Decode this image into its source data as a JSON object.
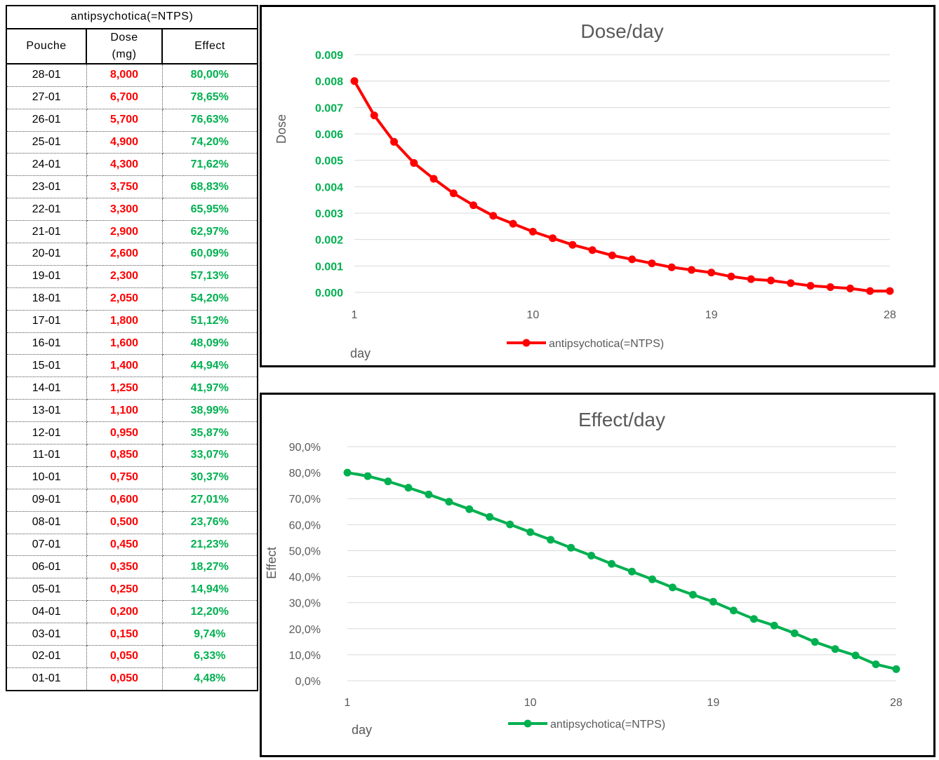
{
  "table": {
    "title": "antipsychotica(=NTPS)",
    "columns": [
      "Pouche",
      "Dose\n(mg)",
      "Effect"
    ],
    "rows": [
      [
        "28-01",
        "8,000",
        "80,00%"
      ],
      [
        "27-01",
        "6,700",
        "78,65%"
      ],
      [
        "26-01",
        "5,700",
        "76,63%"
      ],
      [
        "25-01",
        "4,900",
        "74,20%"
      ],
      [
        "24-01",
        "4,300",
        "71,62%"
      ],
      [
        "23-01",
        "3,750",
        "68,83%"
      ],
      [
        "22-01",
        "3,300",
        "65,95%"
      ],
      [
        "21-01",
        "2,900",
        "62,97%"
      ],
      [
        "20-01",
        "2,600",
        "60,09%"
      ],
      [
        "19-01",
        "2,300",
        "57,13%"
      ],
      [
        "18-01",
        "2,050",
        "54,20%"
      ],
      [
        "17-01",
        "1,800",
        "51,12%"
      ],
      [
        "16-01",
        "1,600",
        "48,09%"
      ],
      [
        "15-01",
        "1,400",
        "44,94%"
      ],
      [
        "14-01",
        "1,250",
        "41,97%"
      ],
      [
        "13-01",
        "1,100",
        "38,99%"
      ],
      [
        "12-01",
        "0,950",
        "35,87%"
      ],
      [
        "11-01",
        "0,850",
        "33,07%"
      ],
      [
        "10-01",
        "0,750",
        "30,37%"
      ],
      [
        "09-01",
        "0,600",
        "27,01%"
      ],
      [
        "08-01",
        "0,500",
        "23,76%"
      ],
      [
        "07-01",
        "0,450",
        "21,23%"
      ],
      [
        "06-01",
        "0,350",
        "18,27%"
      ],
      [
        "05-01",
        "0,250",
        "14,94%"
      ],
      [
        "04-01",
        "0,200",
        "12,20%"
      ],
      [
        "03-01",
        "0,150",
        "9,74%"
      ],
      [
        "02-01",
        "0,050",
        "6,33%"
      ],
      [
        "01-01",
        "0,050",
        "4,48%"
      ]
    ]
  },
  "colors": {
    "dose": "#ff0000",
    "effect": "#00b050",
    "grid": "#d9d9d9",
    "text": "#595959"
  },
  "chart_data": [
    {
      "type": "line",
      "title": "Dose/day",
      "xlabel": "day",
      "ylabel": "Dose",
      "x": [
        1,
        2,
        3,
        4,
        5,
        6,
        7,
        8,
        9,
        10,
        11,
        12,
        13,
        14,
        15,
        16,
        17,
        18,
        19,
        20,
        21,
        22,
        23,
        24,
        25,
        26,
        27,
        28
      ],
      "xticks": [
        "1",
        "10",
        "19",
        "28"
      ],
      "yticks": [
        "0.000",
        "0.001",
        "0.002",
        "0.003",
        "0.004",
        "0.005",
        "0.006",
        "0.007",
        "0.008",
        "0.009"
      ],
      "ylim": [
        0,
        0.009
      ],
      "series": [
        {
          "name": "antipsychotica(=NTPS)",
          "values": [
            0.008,
            0.0067,
            0.0057,
            0.0049,
            0.0043,
            0.00375,
            0.0033,
            0.0029,
            0.0026,
            0.0023,
            0.00205,
            0.0018,
            0.0016,
            0.0014,
            0.00125,
            0.0011,
            0.00095,
            0.00085,
            0.00075,
            0.0006,
            0.0005,
            0.00045,
            0.00035,
            0.00025,
            0.0002,
            0.00015,
            5e-05,
            5e-05
          ]
        }
      ],
      "grid": true,
      "legend": "bottom"
    },
    {
      "type": "line",
      "title": "Effect/day",
      "xlabel": "day",
      "ylabel": "Effect",
      "x": [
        1,
        2,
        3,
        4,
        5,
        6,
        7,
        8,
        9,
        10,
        11,
        12,
        13,
        14,
        15,
        16,
        17,
        18,
        19,
        20,
        21,
        22,
        23,
        24,
        25,
        26,
        27,
        28
      ],
      "xticks": [
        "1",
        "10",
        "19",
        "28"
      ],
      "yticks": [
        "0,0%",
        "10,0%",
        "20,0%",
        "30,0%",
        "40,0%",
        "50,0%",
        "60,0%",
        "70,0%",
        "80,0%",
        "90,0%"
      ],
      "ylim": [
        0,
        90
      ],
      "series": [
        {
          "name": "antipsychotica(=NTPS)",
          "values": [
            80.0,
            78.65,
            76.63,
            74.2,
            71.62,
            68.83,
            65.95,
            62.97,
            60.09,
            57.13,
            54.2,
            51.12,
            48.09,
            44.94,
            41.97,
            38.99,
            35.87,
            33.07,
            30.37,
            27.01,
            23.76,
            21.23,
            18.27,
            14.94,
            12.2,
            9.74,
            6.33,
            4.48
          ]
        }
      ],
      "grid": true,
      "legend": "bottom"
    }
  ]
}
